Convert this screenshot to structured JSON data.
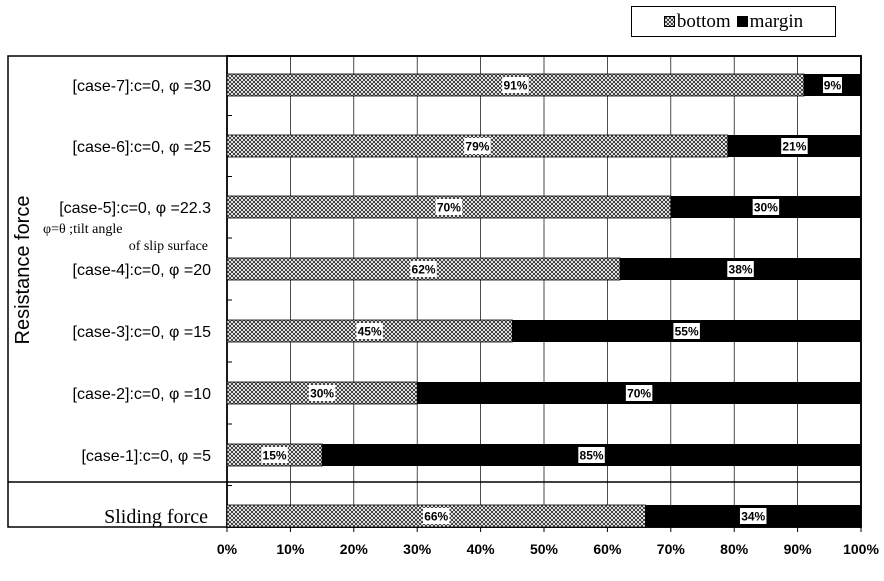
{
  "chart_data": {
    "type": "bar",
    "orientation": "horizontal",
    "stacked": true,
    "legend_position": "top-right",
    "grid": true,
    "xlim": [
      0,
      100
    ],
    "x_ticks": [
      "0%",
      "10%",
      "20%",
      "30%",
      "40%",
      "50%",
      "60%",
      "70%",
      "80%",
      "90%",
      "100%"
    ],
    "y_group_labels": {
      "resistance": "Resistance force",
      "sliding": "Sliding force"
    },
    "annotation": {
      "line1": "φ=θ ;tilt angle",
      "line2": "of slip surface"
    },
    "categories": [
      "[case-7]:c=0, φ =30",
      "[case-6]:c=0, φ =25",
      "[case-5]:c=0, φ =22.3",
      "[case-4]:c=0, φ =20",
      "[case-3]:c=0, φ =15",
      "[case-2]:c=0, φ =10",
      "[case-1]:c=0, φ =5",
      "Sliding force"
    ],
    "series": [
      {
        "name": "bottom",
        "values": [
          91,
          79,
          70,
          62,
          45,
          30,
          15,
          66
        ],
        "labels": [
          "91%",
          "79%",
          "70%",
          "62%",
          "45%",
          "30%",
          "15%",
          "66%"
        ]
      },
      {
        "name": "margin",
        "values": [
          9,
          21,
          30,
          38,
          55,
          70,
          85,
          34
        ],
        "labels": [
          "9%",
          "21%",
          "30%",
          "38%",
          "55%",
          "70%",
          "85%",
          "34%"
        ]
      }
    ]
  }
}
